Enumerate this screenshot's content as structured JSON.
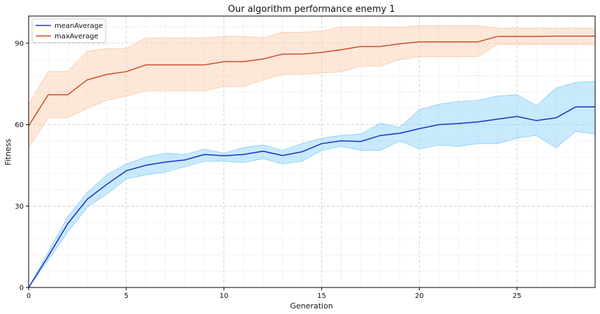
{
  "chart_data": {
    "type": "line",
    "title": "Our algorithm performance enemy 1",
    "xlabel": "Generation",
    "ylabel": "Fitness",
    "xlim": [
      0,
      29
    ],
    "ylim": [
      0,
      100
    ],
    "xticks": [
      0,
      5,
      10,
      15,
      20,
      25
    ],
    "yticks": [
      0,
      30,
      60,
      90
    ],
    "grid": true,
    "legend_position": "top-left",
    "x": [
      0,
      1,
      2,
      3,
      4,
      5,
      6,
      7,
      8,
      9,
      10,
      11,
      12,
      13,
      14,
      15,
      16,
      17,
      18,
      19,
      20,
      21,
      22,
      23,
      24,
      25,
      26,
      27,
      28,
      29
    ],
    "series": [
      {
        "name": "meanAverage",
        "color": "#1f2fbf",
        "band_color": "#87cefa",
        "values": [
          0,
          11.5,
          23.5,
          32.5,
          38,
          43,
          45,
          46.2,
          47,
          49,
          48.5,
          49,
          50.2,
          48.6,
          50,
          53,
          54,
          53.8,
          56,
          56.8,
          58.5,
          60,
          60.4,
          61,
          62,
          63,
          61.5,
          62.5,
          66.5,
          66.5
        ],
        "lower": [
          0,
          10,
          20.5,
          29.5,
          34.5,
          40,
          41.5,
          42.5,
          44.5,
          46.5,
          46.5,
          46,
          47.5,
          45.5,
          46.5,
          50.5,
          52,
          50.5,
          50.5,
          54,
          51,
          52.5,
          52,
          53,
          53,
          55,
          56,
          51.5,
          57.5,
          56.5
        ],
        "upper": [
          0,
          13,
          26,
          35,
          41.5,
          45.5,
          48,
          49.5,
          49,
          51,
          49.5,
          51.5,
          52.5,
          50.5,
          53,
          55,
          56,
          56.5,
          60.5,
          59,
          65.5,
          67.5,
          68.5,
          69,
          70.5,
          71,
          67,
          73.5,
          75.5,
          76
        ]
      },
      {
        "name": "maxAverage",
        "color": "#c8502a",
        "band_color": "#fbc9a8",
        "values": [
          59.5,
          71,
          71,
          76.5,
          78.5,
          79.5,
          82,
          82,
          82,
          82,
          83.2,
          83.2,
          84.2,
          86,
          86,
          86.6,
          87.6,
          88.8,
          88.8,
          89.8,
          90.5,
          90.5,
          90.5,
          90.5,
          92.5,
          92.5,
          92.5,
          92.6,
          92.6,
          92.6
        ],
        "lower": [
          51.5,
          62.5,
          62.5,
          66,
          69,
          70.5,
          72.5,
          72.5,
          72.5,
          72.5,
          74,
          74,
          76.5,
          78.5,
          78.5,
          79,
          79.5,
          81.5,
          81.5,
          84,
          85,
          85,
          85,
          85,
          89.5,
          89.5,
          89.5,
          89.5,
          89.5,
          89.5
        ],
        "upper": [
          67.5,
          79.5,
          79.5,
          87,
          88,
          88,
          92,
          92,
          92,
          92,
          92.5,
          92.5,
          92,
          94,
          94,
          94.5,
          96,
          96,
          96,
          95.8,
          96.5,
          96.5,
          96.5,
          96.5,
          95.5,
          95.5,
          95.5,
          95.5,
          95.5,
          95.5
        ]
      }
    ]
  }
}
